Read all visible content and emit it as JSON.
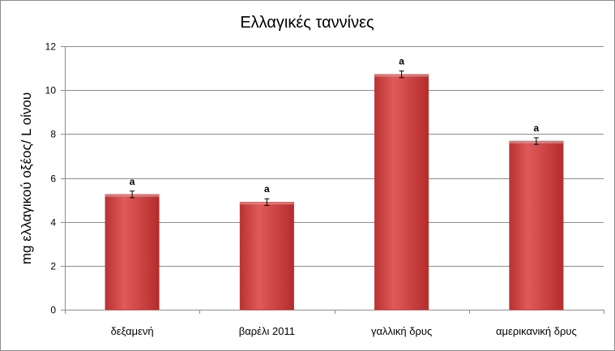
{
  "chart_data": {
    "type": "bar",
    "title": "Ελλαγικές ταννίνες",
    "xlabel": "",
    "ylabel": "mg ελλαγικού οξέος/ L οίνου",
    "categories": [
      "δεξαμενή",
      "βαρέλι 2011",
      "γαλλική δρυς",
      "αμερικανική δρυς"
    ],
    "values": [
      5.25,
      4.9,
      10.72,
      7.68
    ],
    "errors": [
      0.15,
      0.15,
      0.15,
      0.15
    ],
    "labels": [
      "a",
      "a",
      "a",
      "a"
    ],
    "ylim": [
      0,
      12
    ],
    "yticks": [
      0,
      2,
      4,
      6,
      8,
      10,
      12
    ],
    "grid": true,
    "legend": "none",
    "colors": {
      "bar": "#d64545",
      "bar_dark": "#b52c2c",
      "grid": "#8c8c8c"
    }
  }
}
